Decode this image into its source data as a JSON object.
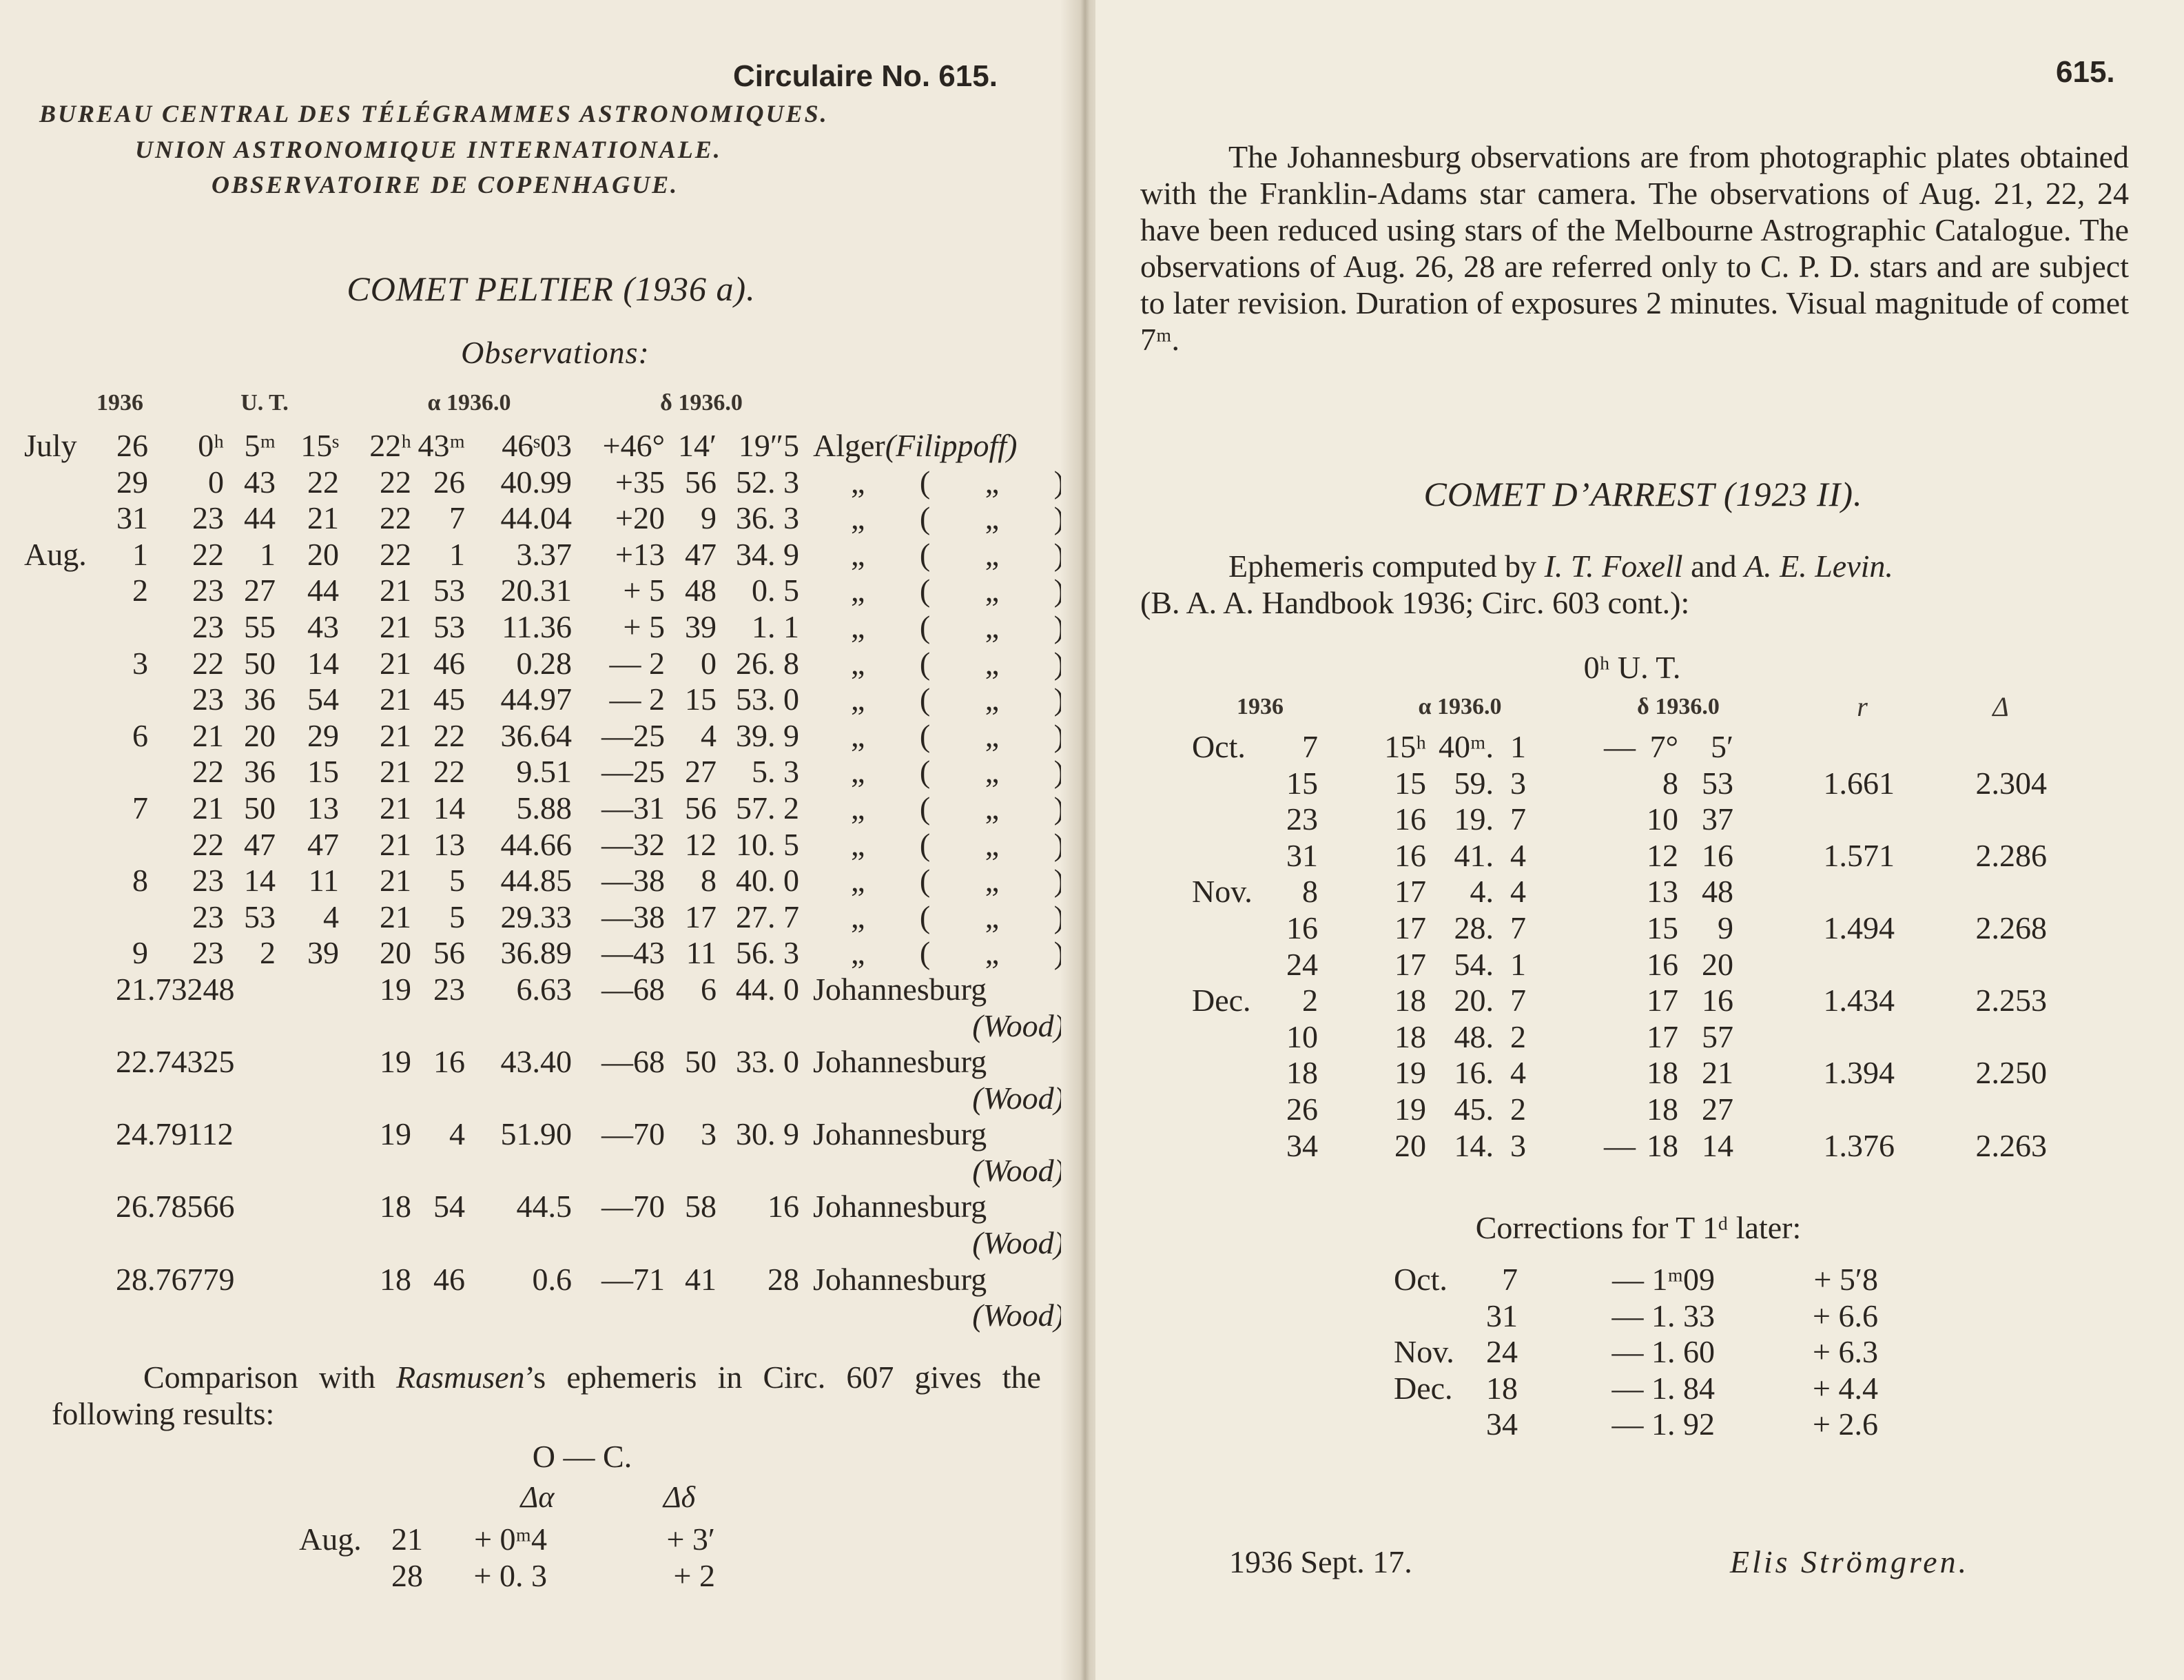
{
  "left": {
    "circular": "Circulaire No. 615.",
    "bureau_lines": [
      "BUREAU CENTRAL DES TÉLÉGRAMMES ASTRONOMIQUES.",
      "UNION ASTRONOMIQUE INTERNATIONALE.",
      "OBSERVATOIRE DE COPENHAGUE."
    ],
    "comet_title": "COMET PELTIER (1936 a).",
    "observations_label": "Observations:",
    "col_headers": {
      "year": "1936",
      "ut": "U. T.",
      "ra": "α 1936.0",
      "dec": "δ 1936.0"
    },
    "rows": [
      {
        "month": "July",
        "day": "26",
        "ut": [
          "0ʰ",
          "5ᵐ",
          "15ˢ"
        ],
        "ra": [
          "22ʰ",
          "43ᵐ",
          "46ˢ03"
        ],
        "dec": [
          "+46°",
          "14′",
          "19″5"
        ],
        "observer": "Alger",
        "observer_note": "(Filippoff)"
      },
      {
        "month": "",
        "day": "29",
        "ut": [
          "0",
          "43",
          "22"
        ],
        "ra": [
          "22",
          "26",
          "40.99"
        ],
        "dec": [
          "+35",
          "56",
          "52. 3"
        ],
        "observer": "„ ( „ )"
      },
      {
        "month": "",
        "day": "31",
        "ut": [
          "23",
          "44",
          "21"
        ],
        "ra": [
          "22",
          "7",
          "44.04"
        ],
        "dec": [
          "+20",
          "9",
          "36. 3"
        ],
        "observer": "„ ( „ )"
      },
      {
        "month": "Aug.",
        "day": "1",
        "ut": [
          "22",
          "1",
          "20"
        ],
        "ra": [
          "22",
          "1",
          "3.37"
        ],
        "dec": [
          "+13",
          "47",
          "34. 9"
        ],
        "observer": "„ ( „ )"
      },
      {
        "month": "",
        "day": "2",
        "ut": [
          "23",
          "27",
          "44"
        ],
        "ra": [
          "21",
          "53",
          "20.31"
        ],
        "dec": [
          "+ 5",
          "48",
          "0. 5"
        ],
        "observer": "„ ( „ )"
      },
      {
        "month": "",
        "day": "",
        "ut": [
          "23",
          "55",
          "43"
        ],
        "ra": [
          "21",
          "53",
          "11.36"
        ],
        "dec": [
          "+ 5",
          "39",
          "1. 1"
        ],
        "observer": "„ ( „ )"
      },
      {
        "month": "",
        "day": "3",
        "ut": [
          "22",
          "50",
          "14"
        ],
        "ra": [
          "21",
          "46",
          "0.28"
        ],
        "dec": [
          "— 2",
          "0",
          "26. 8"
        ],
        "observer": "„ ( „ )"
      },
      {
        "month": "",
        "day": "",
        "ut": [
          "23",
          "36",
          "54"
        ],
        "ra": [
          "21",
          "45",
          "44.97"
        ],
        "dec": [
          "— 2",
          "15",
          "53. 0"
        ],
        "observer": "„ ( „ )"
      },
      {
        "month": "",
        "day": "6",
        "ut": [
          "21",
          "20",
          "29"
        ],
        "ra": [
          "21",
          "22",
          "36.64"
        ],
        "dec": [
          "—25",
          "4",
          "39. 9"
        ],
        "observer": "„ ( „ )"
      },
      {
        "month": "",
        "day": "",
        "ut": [
          "22",
          "36",
          "15"
        ],
        "ra": [
          "21",
          "22",
          "9.51"
        ],
        "dec": [
          "—25",
          "27",
          "5. 3"
        ],
        "observer": "„ ( „ )"
      },
      {
        "month": "",
        "day": "7",
        "ut": [
          "21",
          "50",
          "13"
        ],
        "ra": [
          "21",
          "14",
          "5.88"
        ],
        "dec": [
          "—31",
          "56",
          "57. 2"
        ],
        "observer": "„ ( „ )"
      },
      {
        "month": "",
        "day": "",
        "ut": [
          "22",
          "47",
          "47"
        ],
        "ra": [
          "21",
          "13",
          "44.66"
        ],
        "dec": [
          "—32",
          "12",
          "10. 5"
        ],
        "observer": "„ ( „ )"
      },
      {
        "month": "",
        "day": "8",
        "ut": [
          "23",
          "14",
          "11"
        ],
        "ra": [
          "21",
          "5",
          "44.85"
        ],
        "dec": [
          "—38",
          "8",
          "40. 0"
        ],
        "observer": "„ ( „ )"
      },
      {
        "month": "",
        "day": "",
        "ut": [
          "23",
          "53",
          "4"
        ],
        "ra": [
          "21",
          "5",
          "29.33"
        ],
        "dec": [
          "—38",
          "17",
          "27. 7"
        ],
        "observer": "„ ( „ )"
      },
      {
        "month": "",
        "day": "9",
        "ut": [
          "23",
          "2",
          "39"
        ],
        "ra": [
          "20",
          "56",
          "36.89"
        ],
        "dec": [
          "—43",
          "11",
          "56. 3"
        ],
        "observer": "„ ( „ )"
      },
      {
        "date": "21.73248",
        "ra": [
          "19",
          "23",
          "6.63"
        ],
        "dec": [
          "—68",
          "6",
          "44. 0"
        ],
        "observer": "Johannesburg",
        "observer_note": "(Wood)"
      },
      {
        "date": "22.74325",
        "ra": [
          "19",
          "16",
          "43.40"
        ],
        "dec": [
          "—68",
          "50",
          "33. 0"
        ],
        "observer": "Johannesburg",
        "observer_note": "(Wood)"
      },
      {
        "date": "24.79112",
        "ra": [
          "19",
          "4",
          "51.90"
        ],
        "dec": [
          "—70",
          "3",
          "30. 9"
        ],
        "observer": "Johannesburg",
        "observer_note": "(Wood)"
      },
      {
        "date": "26.78566",
        "ra": [
          "18",
          "54",
          "44.5"
        ],
        "dec": [
          "—70",
          "58",
          "16"
        ],
        "observer": "Johannesburg",
        "observer_note": "(Wood)"
      },
      {
        "date": "28.76779",
        "ra": [
          "18",
          "46",
          "0.6"
        ],
        "dec": [
          "—71",
          "41",
          "28"
        ],
        "observer": "Johannesburg",
        "observer_note": "(Wood)"
      }
    ],
    "comparison": {
      "before": "Comparison with ",
      "name": "Rasmusen",
      "after": "’s ephemeris in Circ. 607 gives the following results:"
    },
    "oc": {
      "title": "O — C.",
      "headers": [
        "Δα",
        "Δδ"
      ],
      "rows": [
        {
          "month": "Aug.",
          "day": "21",
          "da": "+ 0ᵐ4",
          "dd": "+ 3′"
        },
        {
          "month": "",
          "day": "28",
          "da": "+ 0. 3",
          "dd": "+ 2"
        }
      ]
    }
  },
  "right": {
    "page_number": "615.",
    "intro": "The Johannesburg observations are from photographic plates obtained with the Franklin-Adams star camera. The observations of Aug. 21, 22, 24 have been reduced using stars of the Melbourne Astrographic Catalogue. The observations of Aug. 26, 28 are referred only to C. P. D. stars and are subject to later revision. Duration of exposures 2 minutes. Visual magnitude of comet 7ᵐ.",
    "comet_title": "COMET D’ARREST (1923 II).",
    "ephemeris": {
      "prefix": "Ephemeris computed by ",
      "author1": "I. T. Foxell",
      "and": " and ",
      "author2": "A. E. Levin.",
      "source": "(B. A. A. Handbook 1936; Circ. 603 cont.):"
    },
    "time_label": "0ʰ U. T.",
    "col_headers": {
      "year": "1936",
      "ra": "α 1936.0",
      "dec": "δ 1936.0",
      "r": "r",
      "delta": "Δ"
    },
    "rows": [
      {
        "month": "Oct.",
        "day": "7",
        "ra": [
          "15ʰ",
          "40ᵐ.",
          "1"
        ],
        "sign": "—",
        "dec": [
          "7°",
          "5′"
        ],
        "r": "",
        "delta": ""
      },
      {
        "month": "",
        "day": "15",
        "ra": [
          "15",
          "59.",
          "3"
        ],
        "sign": "",
        "dec": [
          "8",
          "53"
        ],
        "r": "1.661",
        "delta": "2.304"
      },
      {
        "month": "",
        "day": "23",
        "ra": [
          "16",
          "19.",
          "7"
        ],
        "sign": "",
        "dec": [
          "10",
          "37"
        ],
        "r": "",
        "delta": ""
      },
      {
        "month": "",
        "day": "31",
        "ra": [
          "16",
          "41.",
          "4"
        ],
        "sign": "",
        "dec": [
          "12",
          "16"
        ],
        "r": "1.571",
        "delta": "2.286"
      },
      {
        "month": "Nov.",
        "day": "8",
        "ra": [
          "17",
          "4.",
          "4"
        ],
        "sign": "",
        "dec": [
          "13",
          "48"
        ],
        "r": "",
        "delta": ""
      },
      {
        "month": "",
        "day": "16",
        "ra": [
          "17",
          "28.",
          "7"
        ],
        "sign": "",
        "dec": [
          "15",
          "9"
        ],
        "r": "1.494",
        "delta": "2.268"
      },
      {
        "month": "",
        "day": "24",
        "ra": [
          "17",
          "54.",
          "1"
        ],
        "sign": "",
        "dec": [
          "16",
          "20"
        ],
        "r": "",
        "delta": ""
      },
      {
        "month": "Dec.",
        "day": "2",
        "ra": [
          "18",
          "20.",
          "7"
        ],
        "sign": "",
        "dec": [
          "17",
          "16"
        ],
        "r": "1.434",
        "delta": "2.253"
      },
      {
        "month": "",
        "day": "10",
        "ra": [
          "18",
          "48.",
          "2"
        ],
        "sign": "",
        "dec": [
          "17",
          "57"
        ],
        "r": "",
        "delta": ""
      },
      {
        "month": "",
        "day": "18",
        "ra": [
          "19",
          "16.",
          "4"
        ],
        "sign": "",
        "dec": [
          "18",
          "21"
        ],
        "r": "1.394",
        "delta": "2.250"
      },
      {
        "month": "",
        "day": "26",
        "ra": [
          "19",
          "45.",
          "2"
        ],
        "sign": "",
        "dec": [
          "18",
          "27"
        ],
        "r": "",
        "delta": ""
      },
      {
        "month": "",
        "day": "34",
        "ra": [
          "20",
          "14.",
          "3"
        ],
        "sign": "—",
        "dec": [
          "18",
          "14"
        ],
        "r": "1.376",
        "delta": "2.263"
      }
    ],
    "corrections": {
      "title": "Corrections for T 1ᵈ later:",
      "rows": [
        {
          "month": "Oct.",
          "day": "7",
          "ra": "— 1ᵐ09",
          "dec": "+ 5′8"
        },
        {
          "month": "",
          "day": "31",
          "ra": "— 1. 33",
          "dec": "+ 6.6"
        },
        {
          "month": "Nov.",
          "day": "24",
          "ra": "— 1. 60",
          "dec": "+ 6.3"
        },
        {
          "month": "Dec.",
          "day": "18",
          "ra": "— 1. 84",
          "dec": "+ 4.4"
        },
        {
          "month": "",
          "day": "34",
          "ra": "— 1. 92",
          "dec": "+ 2.6"
        }
      ]
    },
    "date": "1936 Sept. 17.",
    "signature": "Elis Strömgren."
  }
}
